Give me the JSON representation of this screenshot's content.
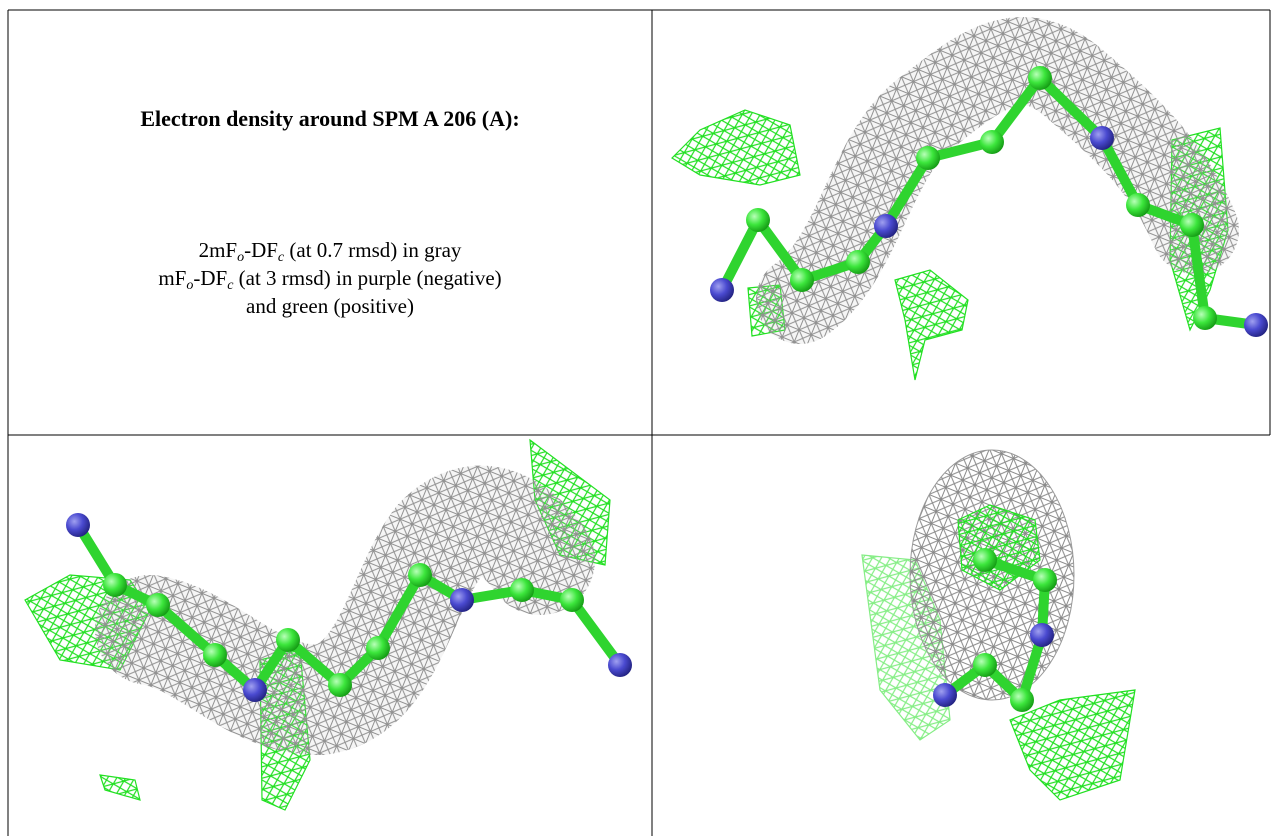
{
  "caption": {
    "title": "Electron density around SPM A 206 (A):",
    "line1": [
      "2mF",
      "o",
      "-DF",
      "c",
      " (at 0.7 rmsd) in gray"
    ],
    "line2": [
      "mF",
      "o",
      "-DF",
      "c",
      " (at 3 rmsd) in purple (negative)"
    ],
    "line3": "and green (positive)"
  }
}
